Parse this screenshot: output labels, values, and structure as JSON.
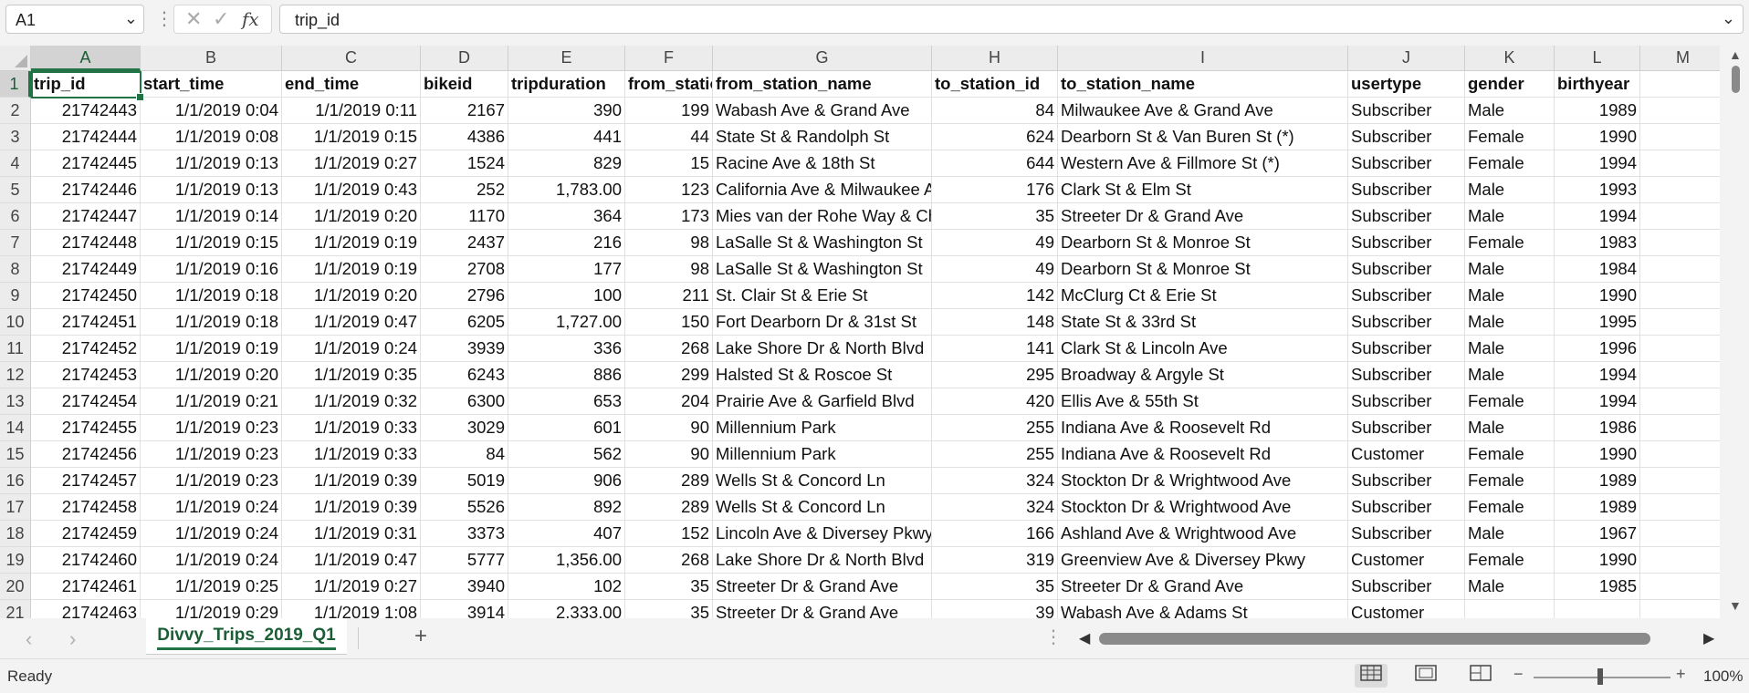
{
  "formula_bar": {
    "name_box": "A1",
    "fx_label": "fx",
    "formula": "trip_id"
  },
  "columns": [
    "A",
    "B",
    "C",
    "D",
    "E",
    "F",
    "G",
    "H",
    "I",
    "J",
    "K",
    "L",
    "M"
  ],
  "row_numbers": [
    "1",
    "2",
    "3",
    "4",
    "5",
    "6",
    "7",
    "8",
    "9",
    "10",
    "11",
    "12",
    "13",
    "14",
    "15",
    "16",
    "17",
    "18",
    "19",
    "20",
    "21"
  ],
  "header_row": [
    "trip_id",
    "start_time",
    "end_time",
    "bikeid",
    "tripduration",
    "from_station_id",
    "from_station_name",
    "to_station_id",
    "to_station_name",
    "usertype",
    "gender",
    "birthyear"
  ],
  "rows": [
    [
      "21742443",
      "1/1/2019 0:04",
      "1/1/2019 0:11",
      "2167",
      "390",
      "199",
      "Wabash Ave & Grand Ave",
      "84",
      "Milwaukee Ave & Grand Ave",
      "Subscriber",
      "Male",
      "1989"
    ],
    [
      "21742444",
      "1/1/2019 0:08",
      "1/1/2019 0:15",
      "4386",
      "441",
      "44",
      "State St & Randolph St",
      "624",
      "Dearborn St & Van Buren St (*)",
      "Subscriber",
      "Female",
      "1990"
    ],
    [
      "21742445",
      "1/1/2019 0:13",
      "1/1/2019 0:27",
      "1524",
      "829",
      "15",
      "Racine Ave & 18th St",
      "644",
      "Western Ave & Fillmore St (*)",
      "Subscriber",
      "Female",
      "1994"
    ],
    [
      "21742446",
      "1/1/2019 0:13",
      "1/1/2019 0:43",
      "252",
      "1,783.00",
      "123",
      "California Ave & Milwaukee Ave",
      "176",
      "Clark St & Elm St",
      "Subscriber",
      "Male",
      "1993"
    ],
    [
      "21742447",
      "1/1/2019 0:14",
      "1/1/2019 0:20",
      "1170",
      "364",
      "173",
      "Mies van der Rohe Way & Chicago Ave",
      "35",
      "Streeter Dr & Grand Ave",
      "Subscriber",
      "Male",
      "1994"
    ],
    [
      "21742448",
      "1/1/2019 0:15",
      "1/1/2019 0:19",
      "2437",
      "216",
      "98",
      "LaSalle St & Washington St",
      "49",
      "Dearborn St & Monroe St",
      "Subscriber",
      "Female",
      "1983"
    ],
    [
      "21742449",
      "1/1/2019 0:16",
      "1/1/2019 0:19",
      "2708",
      "177",
      "98",
      "LaSalle St & Washington St",
      "49",
      "Dearborn St & Monroe St",
      "Subscriber",
      "Male",
      "1984"
    ],
    [
      "21742450",
      "1/1/2019 0:18",
      "1/1/2019 0:20",
      "2796",
      "100",
      "211",
      "St. Clair St & Erie St",
      "142",
      "McClurg Ct & Erie St",
      "Subscriber",
      "Male",
      "1990"
    ],
    [
      "21742451",
      "1/1/2019 0:18",
      "1/1/2019 0:47",
      "6205",
      "1,727.00",
      "150",
      "Fort Dearborn Dr & 31st St",
      "148",
      "State St & 33rd St",
      "Subscriber",
      "Male",
      "1995"
    ],
    [
      "21742452",
      "1/1/2019 0:19",
      "1/1/2019 0:24",
      "3939",
      "336",
      "268",
      "Lake Shore Dr & North Blvd",
      "141",
      "Clark St & Lincoln Ave",
      "Subscriber",
      "Male",
      "1996"
    ],
    [
      "21742453",
      "1/1/2019 0:20",
      "1/1/2019 0:35",
      "6243",
      "886",
      "299",
      "Halsted St & Roscoe St",
      "295",
      "Broadway & Argyle St",
      "Subscriber",
      "Male",
      "1994"
    ],
    [
      "21742454",
      "1/1/2019 0:21",
      "1/1/2019 0:32",
      "6300",
      "653",
      "204",
      "Prairie Ave & Garfield Blvd",
      "420",
      "Ellis Ave & 55th St",
      "Subscriber",
      "Female",
      "1994"
    ],
    [
      "21742455",
      "1/1/2019 0:23",
      "1/1/2019 0:33",
      "3029",
      "601",
      "90",
      "Millennium Park",
      "255",
      "Indiana Ave & Roosevelt Rd",
      "Subscriber",
      "Male",
      "1986"
    ],
    [
      "21742456",
      "1/1/2019 0:23",
      "1/1/2019 0:33",
      "84",
      "562",
      "90",
      "Millennium Park",
      "255",
      "Indiana Ave & Roosevelt Rd",
      "Customer",
      "Female",
      "1990"
    ],
    [
      "21742457",
      "1/1/2019 0:23",
      "1/1/2019 0:39",
      "5019",
      "906",
      "289",
      "Wells St & Concord Ln",
      "324",
      "Stockton Dr & Wrightwood Ave",
      "Subscriber",
      "Female",
      "1989"
    ],
    [
      "21742458",
      "1/1/2019 0:24",
      "1/1/2019 0:39",
      "5526",
      "892",
      "289",
      "Wells St & Concord Ln",
      "324",
      "Stockton Dr & Wrightwood Ave",
      "Subscriber",
      "Female",
      "1989"
    ],
    [
      "21742459",
      "1/1/2019 0:24",
      "1/1/2019 0:31",
      "3373",
      "407",
      "152",
      "Lincoln Ave & Diversey Pkwy",
      "166",
      "Ashland Ave & Wrightwood Ave",
      "Subscriber",
      "Male",
      "1967"
    ],
    [
      "21742460",
      "1/1/2019 0:24",
      "1/1/2019 0:47",
      "5777",
      "1,356.00",
      "268",
      "Lake Shore Dr & North Blvd",
      "319",
      "Greenview Ave & Diversey Pkwy",
      "Customer",
      "Female",
      "1990"
    ],
    [
      "21742461",
      "1/1/2019 0:25",
      "1/1/2019 0:27",
      "3940",
      "102",
      "35",
      "Streeter Dr & Grand Ave",
      "35",
      "Streeter Dr & Grand Ave",
      "Subscriber",
      "Male",
      "1985"
    ],
    [
      "21742463",
      "1/1/2019 0:29",
      "1/1/2019 1:08",
      "3914",
      "2,333.00",
      "35",
      "Streeter Dr & Grand Ave",
      "39",
      "Wabash Ave & Adams St",
      "Customer",
      "",
      ""
    ]
  ],
  "sheet_tab": "Divvy_Trips_2019_Q1",
  "status": {
    "ready": "Ready",
    "zoom_minus": "−",
    "zoom_plus": "+",
    "zoom": "100%"
  },
  "colors": {
    "accent": "#217346",
    "header_bg": "#ececec"
  }
}
